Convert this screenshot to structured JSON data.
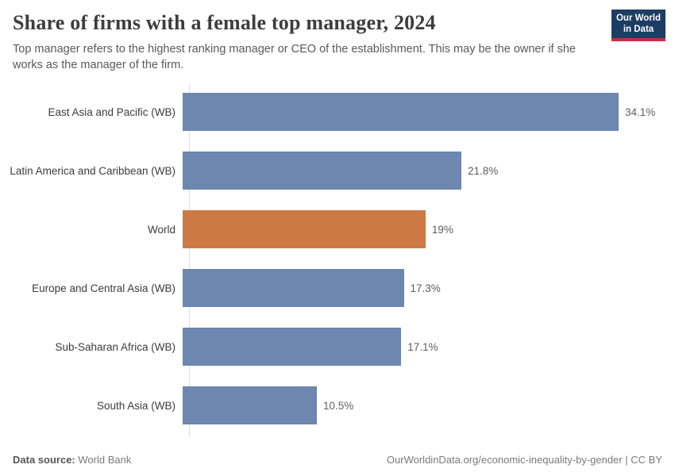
{
  "header": {
    "title": "Share of firms with a female top manager, 2024",
    "subtitle": "Top manager refers to the highest ranking manager or CEO of the establishment. This may be the owner if she works as the manager of the firm.",
    "logo": {
      "line1": "Our World",
      "line2": "in Data"
    }
  },
  "chart_data": {
    "type": "bar",
    "orientation": "horizontal",
    "title": "Share of firms with a female top manager, 2024",
    "xlabel": "",
    "ylabel": "",
    "xlim": [
      0,
      34.1
    ],
    "grid": false,
    "categories": [
      "East Asia and Pacific (WB)",
      "Latin America and Caribbean (WB)",
      "World",
      "Europe and Central Asia (WB)",
      "Sub-Saharan Africa (WB)",
      "South Asia (WB)"
    ],
    "values": [
      34.1,
      21.8,
      19,
      17.3,
      17.1,
      10.5
    ],
    "value_labels": [
      "34.1%",
      "21.8%",
      "19%",
      "17.3%",
      "17.1%",
      "10.5%"
    ],
    "bar_colors": [
      "#6d87b0",
      "#6d87b0",
      "#cd7946",
      "#6d87b0",
      "#6d87b0",
      "#6d87b0"
    ],
    "highlight_category": "World"
  },
  "colors": {
    "bar_default": "#6d87b0",
    "bar_highlight": "#cd7946",
    "axis_line": "#dedede",
    "logo_bg": "#1d3d63",
    "logo_stripe": "#d0293e"
  },
  "footer": {
    "datasource_label": "Data source:",
    "datasource_value": "World Bank",
    "attribution": "OurWorldinData.org/economic-inequality-by-gender | CC BY"
  }
}
